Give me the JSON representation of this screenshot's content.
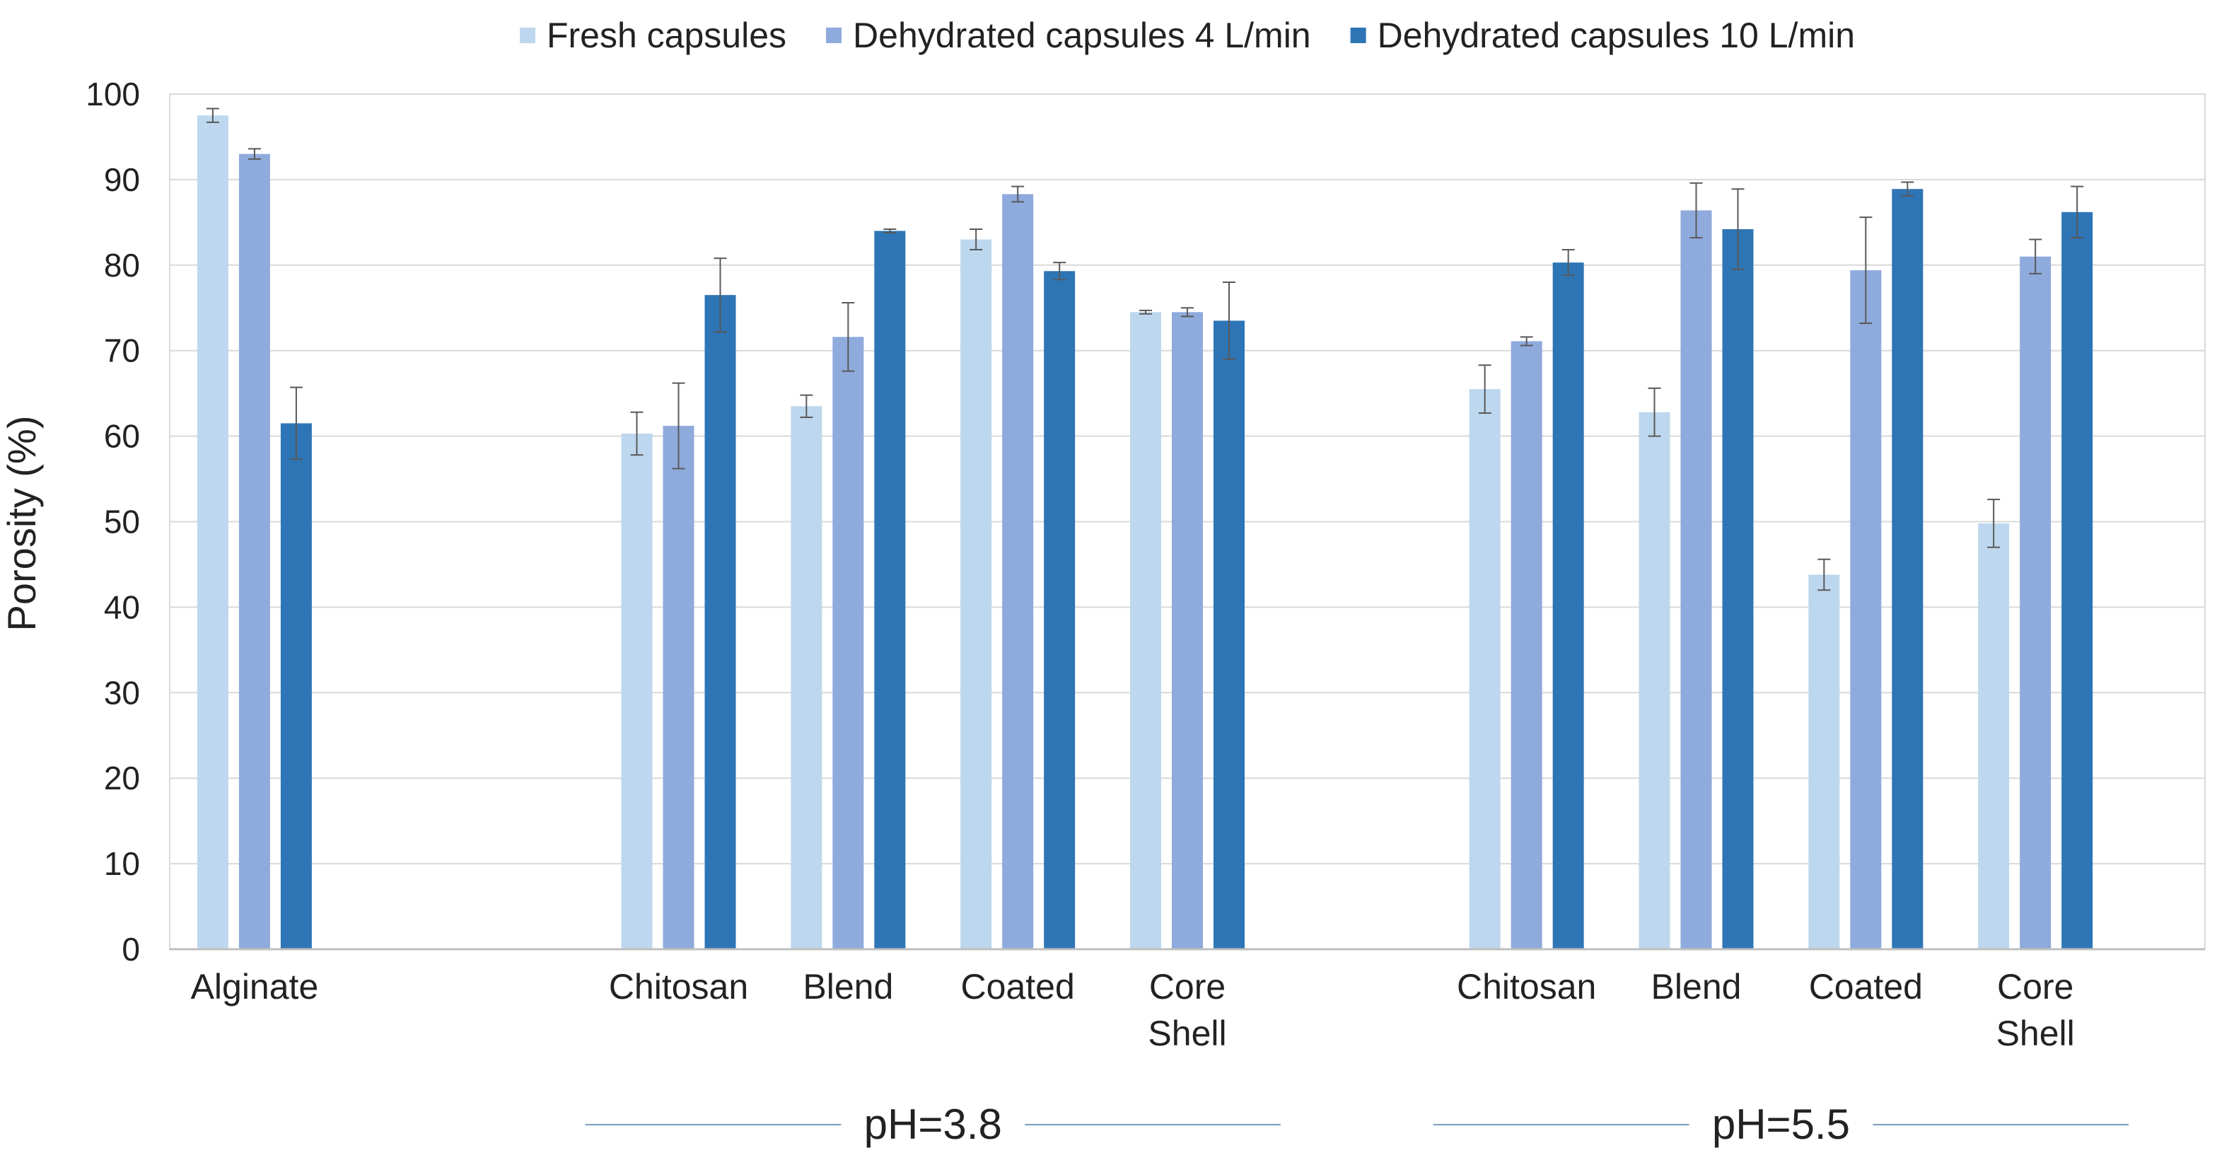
{
  "chart_data": {
    "type": "bar",
    "title": "",
    "xlabel": "",
    "ylabel": "Porosity (%)",
    "ylim": [
      0,
      100
    ],
    "yticks": [
      0,
      10,
      20,
      30,
      40,
      50,
      60,
      70,
      80,
      90,
      100
    ],
    "grid": true,
    "legend_position": "top",
    "categories": [
      {
        "label": "Alginate",
        "lines": [
          "Alginate"
        ]
      },
      {
        "label": "",
        "lines": []
      },
      {
        "label": "Chitosan",
        "lines": [
          "Chitosan"
        ]
      },
      {
        "label": "Blend",
        "lines": [
          "Blend"
        ]
      },
      {
        "label": "Coated",
        "lines": [
          "Coated"
        ]
      },
      {
        "label": "Core Shell",
        "lines": [
          "Core",
          "Shell"
        ]
      },
      {
        "label": "",
        "lines": []
      },
      {
        "label": "Chitosan",
        "lines": [
          "Chitosan"
        ]
      },
      {
        "label": "Blend",
        "lines": [
          "Blend"
        ]
      },
      {
        "label": "Coated",
        "lines": [
          "Coated"
        ]
      },
      {
        "label": "Core Shell",
        "lines": [
          "Core",
          "Shell"
        ]
      }
    ],
    "groups": [
      {
        "label": "pH=3.8",
        "from": 2,
        "to": 5
      },
      {
        "label": "pH=5.5",
        "from": 7,
        "to": 10
      }
    ],
    "series": [
      {
        "name": "Fresh capsules",
        "color": "#bdd7ee",
        "values": [
          97.5,
          null,
          60.3,
          63.5,
          83.0,
          74.5,
          null,
          65.5,
          62.8,
          43.8,
          49.8
        ],
        "errors": [
          0.8,
          null,
          2.5,
          1.3,
          1.2,
          0.2,
          null,
          2.8,
          2.8,
          1.8,
          2.8
        ]
      },
      {
        "name": "Dehydrated capsules 4 L/min",
        "color": "#8faadc",
        "values": [
          93.0,
          null,
          61.2,
          71.6,
          88.3,
          74.5,
          null,
          71.1,
          86.4,
          79.4,
          81.0
        ],
        "errors": [
          0.6,
          null,
          5.0,
          4.0,
          0.9,
          0.5,
          null,
          0.5,
          3.2,
          6.2,
          2.0
        ]
      },
      {
        "name": "Dehydrated capsules 10 L/min",
        "color": "#2e75b6",
        "values": [
          61.5,
          null,
          76.5,
          84.0,
          79.3,
          73.5,
          null,
          80.3,
          84.2,
          88.9,
          86.2
        ],
        "errors": [
          4.2,
          null,
          4.3,
          0.2,
          1.0,
          4.5,
          null,
          1.5,
          4.7,
          0.8,
          3.0
        ]
      }
    ]
  }
}
